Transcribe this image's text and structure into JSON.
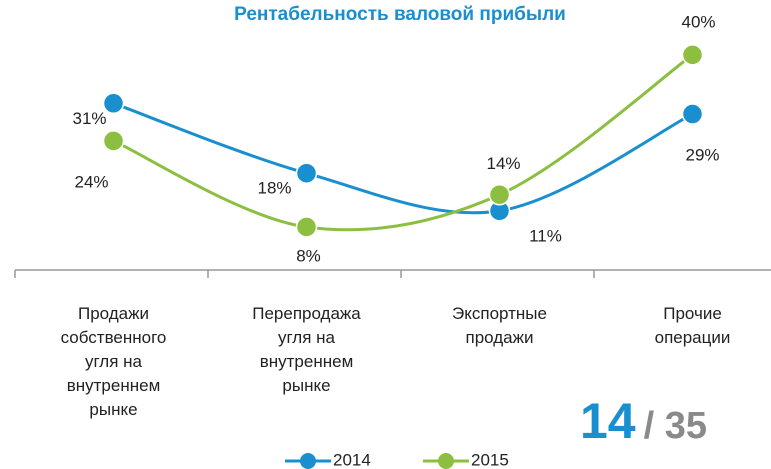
{
  "chart_data": {
    "type": "line",
    "title": "Рентабельность валовой прибыли",
    "categories": [
      "Продажи\nсобственного\nугля на\nвнутреннем\nрынке",
      "Перепродажа\nугля на\nвнутреннем\nрынке",
      "Экспортные\nпродажи",
      "Прочие\nоперации"
    ],
    "series": [
      {
        "name": "2014",
        "color": "#1a8fd0",
        "values": [
          31,
          18,
          11,
          29
        ],
        "value_labels": [
          "31%",
          "18%",
          "11%",
          "29%"
        ]
      },
      {
        "name": "2015",
        "color": "#8cbf3f",
        "values": [
          24,
          8,
          14,
          40
        ],
        "value_labels": [
          "24%",
          "8%",
          "14%",
          "40%"
        ]
      }
    ],
    "ylim": [
      0,
      45
    ],
    "smooth": true
  },
  "page_indicator": {
    "current": "14",
    "total": "/ 35"
  }
}
